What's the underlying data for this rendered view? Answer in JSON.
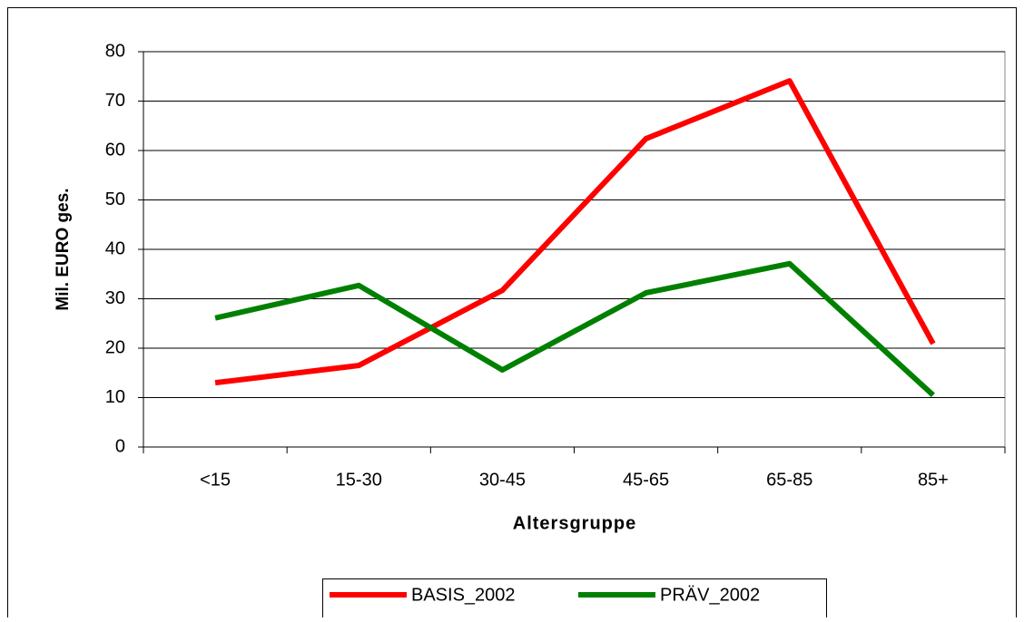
{
  "chart_data": {
    "type": "line",
    "y_label": "Mil. EURO ges.",
    "x_label": "Altersgruppe",
    "categories": [
      "<15",
      "15-30",
      "30-45",
      "45-65",
      "65-85",
      "85+"
    ],
    "series": [
      {
        "name": "BASIS_2002",
        "color": "#ff0000",
        "values": [
          13.0,
          16.5,
          31.7,
          62.4,
          74.1,
          20.9
        ]
      },
      {
        "name": "PRÄV_2002",
        "color": "#008000",
        "values": [
          26.1,
          32.7,
          15.6,
          31.2,
          37.1,
          10.5
        ]
      }
    ],
    "ylim": [
      0,
      80
    ],
    "yticks": [
      0,
      10,
      20,
      30,
      40,
      50,
      60,
      70,
      80
    ],
    "grid": true
  }
}
